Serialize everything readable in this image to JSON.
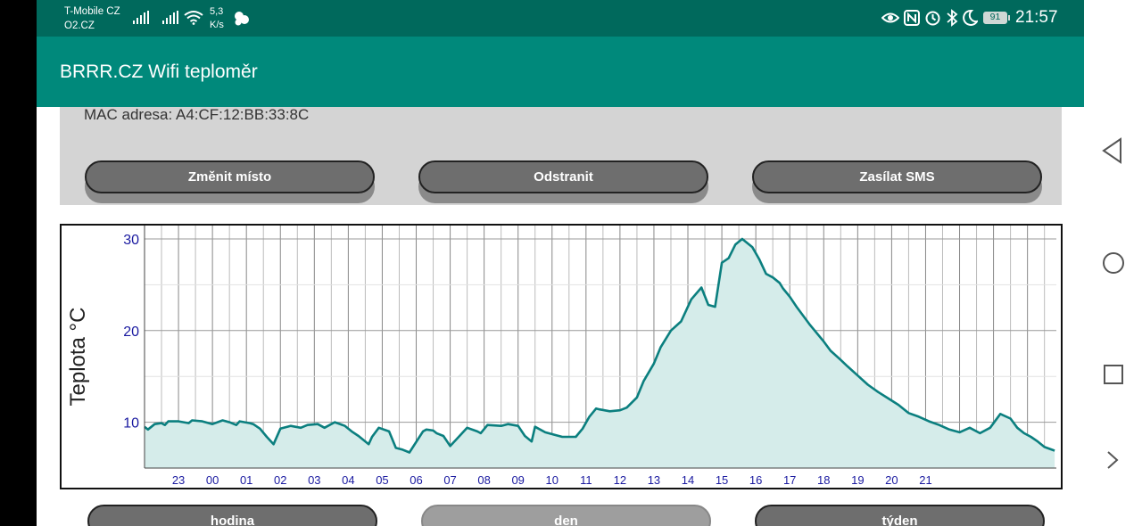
{
  "status_bar": {
    "carrier_1": "T-Mobile CZ",
    "carrier_2": "O2.CZ",
    "speed_value": "5,3",
    "speed_unit": "K/s",
    "battery": "91",
    "time": "21:57",
    "icons": [
      "signal-icon",
      "signal-icon",
      "wifi-icon",
      "speed-icon",
      "notification-icon",
      "eye-icon",
      "nfc-icon",
      "alarm-icon",
      "bluetooth-icon",
      "moon-icon",
      "battery-icon"
    ]
  },
  "app_bar": {
    "title": "BRRR.CZ Wifi teploměr"
  },
  "info": {
    "mac": "MAC adresa: A4:CF:12:BB:33:8C"
  },
  "actions": {
    "change_place": "Změnit místo",
    "remove": "Odstranit",
    "send_sms": "Zasílat SMS"
  },
  "range_buttons": {
    "hour": "hodina",
    "day": "den",
    "week": "týden",
    "active": "den"
  },
  "colors": {
    "status_bar": "#00695c",
    "app_bar": "#00897b",
    "line": "#0b7f7f",
    "fill": "#d5ecea",
    "tick_label": "#1a1aa0"
  },
  "chart_data": {
    "type": "area",
    "ylabel": "Teplota °C",
    "xlabel": "",
    "ylim": [
      5,
      30
    ],
    "yticks": [
      10,
      20,
      30
    ],
    "xticks": [
      "23",
      "00",
      "01",
      "02",
      "03",
      "04",
      "05",
      "06",
      "07",
      "08",
      "09",
      "10",
      "11",
      "12",
      "13",
      "14",
      "15",
      "16",
      "17",
      "18",
      "19",
      "20",
      "21"
    ],
    "x_hours": [
      22.0,
      22.1,
      22.3,
      22.5,
      22.6,
      22.7,
      23.0,
      23.3,
      23.4,
      23.7,
      24.0,
      24.3,
      24.5,
      24.7,
      24.8,
      25.1,
      25.2,
      25.4,
      25.6,
      25.8,
      26.0,
      26.3,
      26.6,
      26.8,
      27.1,
      27.3,
      27.6,
      27.9,
      28.1,
      28.3,
      28.6,
      28.7,
      28.9,
      29.2,
      29.4,
      29.6,
      29.8,
      30.2,
      30.3,
      30.5,
      30.6,
      30.8,
      31.0,
      31.3,
      31.5,
      31.8,
      31.9,
      32.1,
      32.5,
      32.7,
      33.0,
      33.2,
      33.4,
      33.5,
      33.8,
      34.1,
      34.3,
      34.7,
      34.9,
      35.1,
      35.3,
      35.4,
      35.7,
      36.0,
      36.2,
      36.5,
      36.7,
      37.0,
      37.2,
      37.5,
      37.8,
      38.1,
      38.4,
      38.6,
      38.8,
      39.0,
      39.2,
      39.4,
      39.6,
      39.9,
      40.1,
      40.3,
      40.5,
      40.7,
      40.8,
      41.0,
      41.2,
      41.6,
      42.0,
      42.2,
      42.5,
      42.7,
      43.0,
      43.3,
      43.6,
      43.9,
      44.2,
      44.5,
      44.8,
      45.1,
      45.4,
      45.7,
      46.0,
      46.3,
      46.6,
      46.9,
      47.2,
      47.5,
      47.7,
      47.9,
      48.1,
      48.3,
      48.5,
      48.8
    ],
    "y_temp": [
      9.5,
      9.2,
      9.8,
      9.9,
      9.7,
      10.1,
      10.1,
      9.9,
      10.2,
      10.1,
      9.8,
      10.2,
      10.0,
      9.7,
      10.1,
      9.9,
      9.8,
      9.3,
      8.4,
      7.6,
      9.3,
      9.6,
      9.4,
      9.7,
      9.8,
      9.4,
      10.0,
      9.6,
      9.0,
      8.5,
      7.6,
      8.4,
      9.4,
      9.0,
      7.2,
      7.0,
      6.7,
      9.0,
      9.2,
      9.1,
      8.8,
      8.5,
      7.4,
      8.6,
      9.4,
      9.0,
      8.8,
      9.7,
      9.6,
      9.8,
      9.6,
      8.5,
      7.9,
      9.5,
      8.9,
      8.6,
      8.4,
      8.4,
      9.3,
      10.6,
      11.5,
      11.4,
      11.2,
      11.3,
      11.6,
      12.7,
      14.5,
      16.4,
      18.2,
      20.0,
      21.0,
      23.4,
      24.7,
      22.8,
      22.6,
      27.4,
      27.9,
      29.4,
      30.0,
      29.1,
      27.8,
      26.2,
      25.8,
      25.2,
      24.6,
      23.7,
      22.6,
      20.6,
      18.8,
      17.8,
      16.8,
      16.1,
      15.1,
      14.1,
      13.3,
      12.6,
      11.9,
      11.0,
      10.6,
      10.1,
      9.7,
      9.2,
      8.9,
      9.4,
      8.8,
      9.4,
      10.9,
      10.4,
      9.4,
      8.8,
      8.4,
      7.9,
      7.3,
      6.9
    ]
  }
}
